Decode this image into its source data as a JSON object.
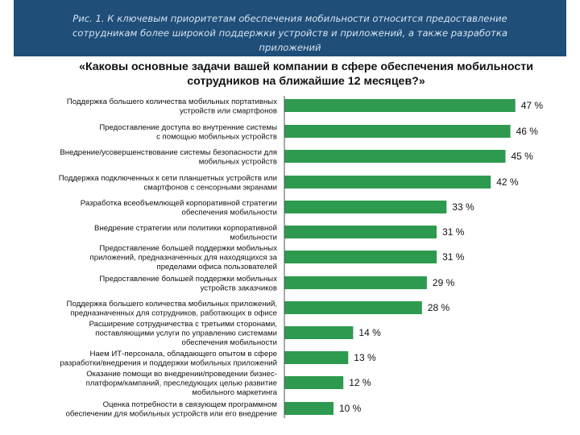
{
  "caption": {
    "line1": "Рис. 1. К ключевым приоритетам обеспечения мобильности относится предоставление",
    "line2": "сотрудникам более широкой поддержки устройств и приложений, а также разработка",
    "line3": "приложений"
  },
  "colors": {
    "bar": "#2e9a4f",
    "caption_bg": "#1f4e79",
    "caption_text": "#d6e4f0"
  },
  "chart_data": {
    "type": "bar",
    "orientation": "horizontal",
    "title_line1": "«Каковы основные задачи вашей компании в сфере обеспечения мобильности",
    "title_line2": "сотрудников на ближайшие 12 месяцев?»",
    "xlim": [
      0,
      50
    ],
    "unit": "%",
    "value_labels": [
      "47 %",
      "46 %",
      "45 %",
      "42 %",
      "33 %",
      "31 %",
      "31 %",
      "29 %",
      "28 %",
      "14 %",
      "13 %",
      "12 %",
      "10 %"
    ],
    "values": [
      47,
      46,
      45,
      42,
      33,
      31,
      31,
      29,
      28,
      14,
      13,
      12,
      10
    ],
    "categories": [
      [
        "Поддержка большего количества мобильных портативных",
        "устройств или смартфонов"
      ],
      [
        "Предоставление доступа во внутренние системы",
        "с помощью мобильных устройств"
      ],
      [
        "Внедрение/усовершенствование системы безопасности для",
        "мобильных устройств"
      ],
      [
        "Поддержка подключенных к сети планшетных устройств или",
        "смартфонов с сенсорными экранами"
      ],
      [
        "Разработка всеобъемлющей корпоративной стратегии",
        "обеспечения мобильности"
      ],
      [
        "Внедрение стратегии или политики корпоративной",
        "мобильности"
      ],
      [
        "Предоставление большей поддержки мобильных",
        "приложений, предназначенных для находящихся за",
        "пределами офиса пользователей"
      ],
      [
        "Предоставление большей поддержки мобильных",
        "устройств заказчиков"
      ],
      [
        "Поддержка большего количества мобильных приложений,",
        "предназначенных для сотрудников, работающих в офисе"
      ],
      [
        "Расширение сотрудничества с третьими сторонами,",
        "поставляющими услуги по управлению системами",
        "обеспечения мобильности"
      ],
      [
        "Наем ИТ-персонала, обладающего опытом в сфере",
        "разработки/внедрения и поддержки мобильных приложений"
      ],
      [
        "Оказание помощи во внедрении/проведении бизнес-",
        "платформ/кампаний, преследующих целью развитие",
        "мобильного маркетинга"
      ],
      [
        "Оценка потребности в связующем программном",
        "обеспечении для мобильных устройств или его внедрение"
      ]
    ]
  }
}
